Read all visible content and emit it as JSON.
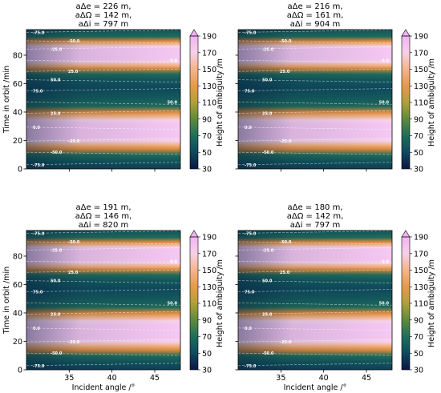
{
  "colormap": {
    "stops": [
      "#0b1642",
      "#0d4a5e",
      "#1d6e5c",
      "#5f8a3c",
      "#b0a03a",
      "#e6994b",
      "#f6b48a",
      "#f7d0e8",
      "#f2b4f2"
    ],
    "vmin": 30,
    "vmax": 190,
    "extend": "max",
    "ticks": [
      "30",
      "50",
      "70",
      "90",
      "110",
      "130",
      "150",
      "170",
      "190"
    ],
    "label": "Height of ambiguity /m"
  },
  "contour_labels": [
    "-75.0",
    "-50.0",
    "-25.0",
    "0.0",
    "25.0",
    "50.0",
    "75.0"
  ],
  "chart_data": [
    {
      "type": "heatmap",
      "title": [
        "aΔe =  226 m,",
        "aΔΩ =  142 m,",
        "aΔi =  797 m"
      ],
      "xlabel": "",
      "ylabel": "Time in orbit /min",
      "xlim": [
        30,
        48
      ],
      "ylim": [
        0,
        98
      ],
      "xticks": [],
      "yticks": [
        "0",
        "20",
        "40",
        "60",
        "80"
      ]
    },
    {
      "type": "heatmap",
      "title": [
        "aΔe =  216 m,",
        "aΔΩ =  161 m,",
        "aΔi =  904 m"
      ],
      "xlabel": "",
      "ylabel": "",
      "xlim": [
        30,
        48
      ],
      "ylim": [
        0,
        98
      ],
      "xticks": [],
      "yticks": []
    },
    {
      "type": "heatmap",
      "title": [
        "aΔe =  191 m,",
        "aΔΩ =  146 m,",
        "aΔi =  820 m"
      ],
      "xlabel": "Incident angle /°",
      "ylabel": "Time in orbit /min",
      "xlim": [
        30,
        48
      ],
      "ylim": [
        0,
        98
      ],
      "xticks": [
        "35",
        "40",
        "45"
      ],
      "yticks": [
        "0",
        "20",
        "40",
        "60",
        "80"
      ]
    },
    {
      "type": "heatmap",
      "title": [
        "aΔe =  180 m,",
        "aΔΩ =  142 m,",
        "aΔi =  797 m"
      ],
      "xlabel": "Incident angle /°",
      "ylabel": "",
      "xlim": [
        30,
        48
      ],
      "ylim": [
        0,
        98
      ],
      "xticks": [
        "35",
        "40",
        "45"
      ],
      "yticks": []
    }
  ]
}
